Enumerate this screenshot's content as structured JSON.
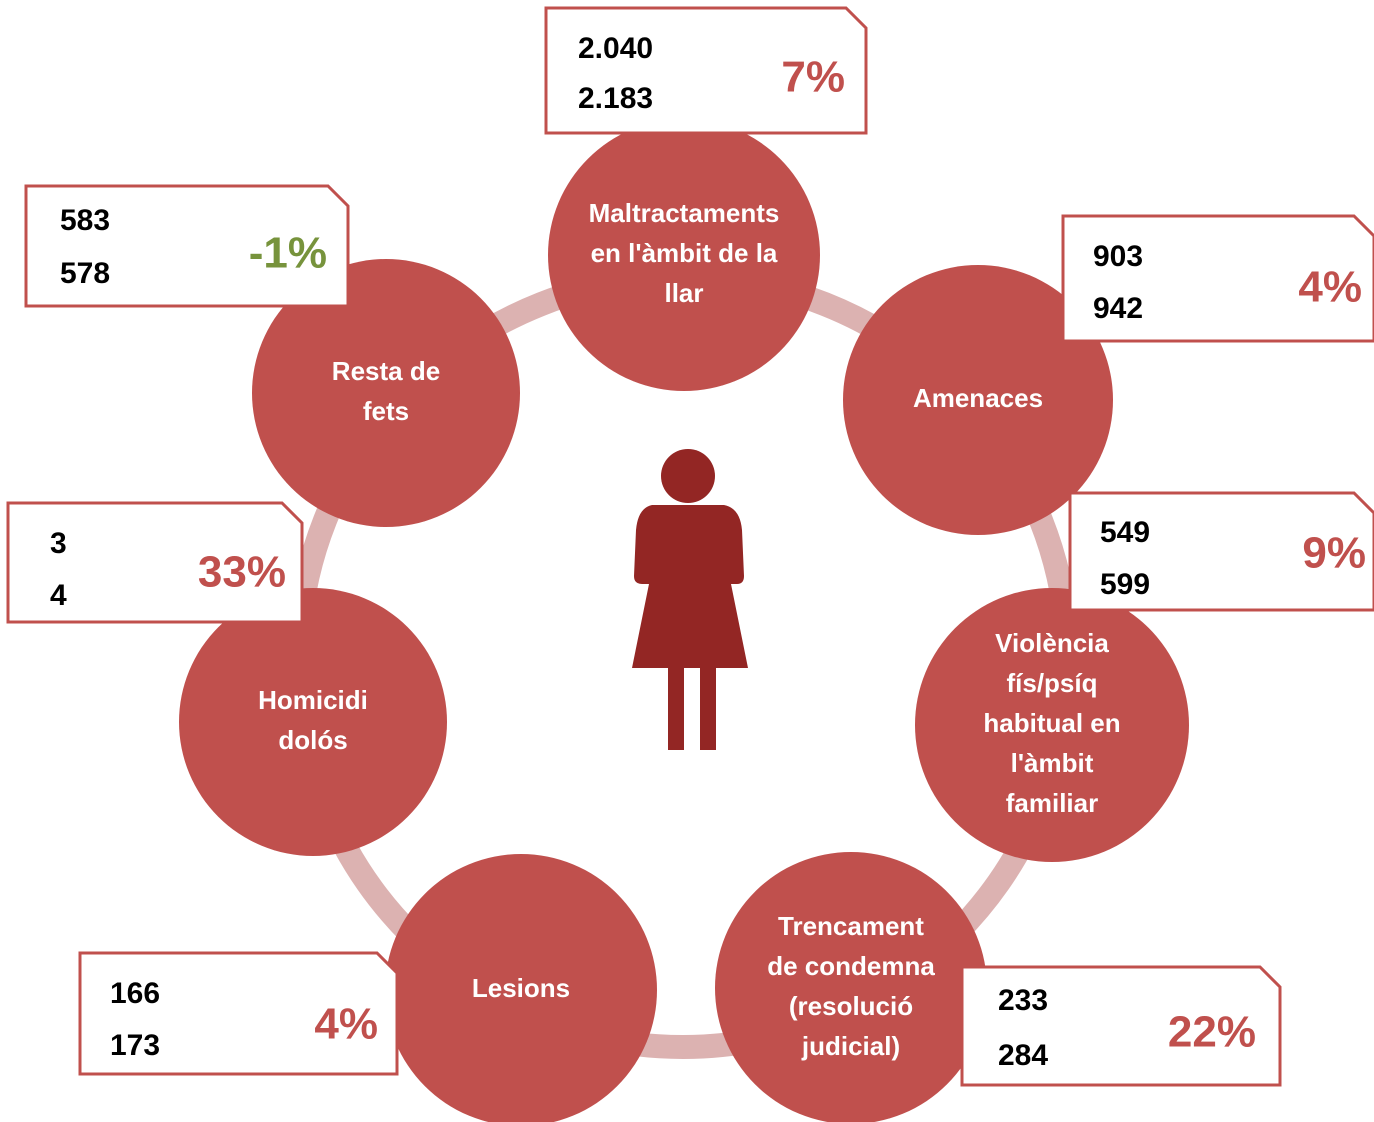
{
  "nodes": [
    {
      "label": [
        "Maltractaments",
        "en l'àmbit de la",
        "llar"
      ],
      "value_1": "2.040",
      "value_2": "2.183",
      "change": "7%",
      "change_color": "#c0504d"
    },
    {
      "label": [
        "Amenaces"
      ],
      "value_1": "903",
      "value_2": "942",
      "change": "4%",
      "change_color": "#c0504d"
    },
    {
      "label": [
        "Violència",
        "fís/psíq",
        "habitual en",
        "l'àmbit",
        "familiar"
      ],
      "value_1": "549",
      "value_2": "599",
      "change": "9%",
      "change_color": "#c0504d"
    },
    {
      "label": [
        "Trencament",
        "de condemna",
        "(resolució",
        "judicial)"
      ],
      "value_1": "233",
      "value_2": "284",
      "change": "22%",
      "change_color": "#c0504d"
    },
    {
      "label": [
        "Lesions"
      ],
      "value_1": "166",
      "value_2": "173",
      "change": "4%",
      "change_color": "#c0504d"
    },
    {
      "label": [
        "Homicidi",
        "dolós"
      ],
      "value_1": "3",
      "value_2": "4",
      "change": "33%",
      "change_color": "#c0504d"
    },
    {
      "label": [
        "Resta de",
        "fets"
      ],
      "value_1": "583",
      "value_2": "578",
      "change": "-1%",
      "change_color": "#77933c"
    }
  ]
}
